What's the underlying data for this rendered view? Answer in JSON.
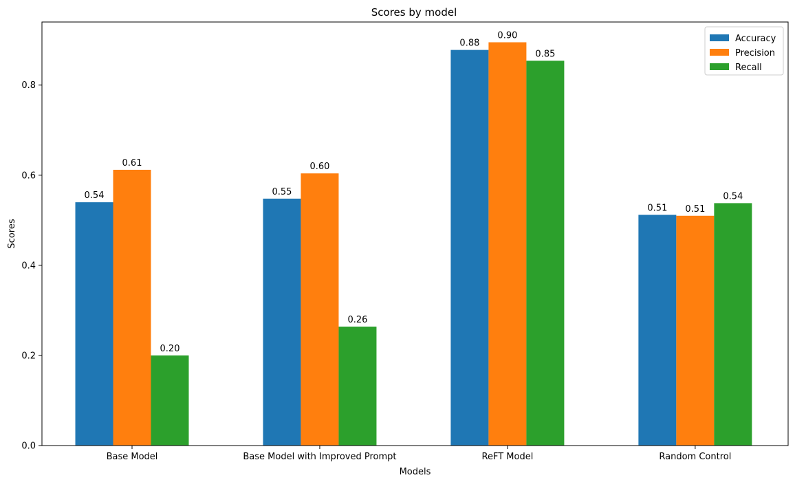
{
  "chart_data": {
    "type": "bar",
    "title": "Scores by model",
    "xlabel": "Models",
    "ylabel": "Scores",
    "categories": [
      "Base Model",
      "Base Model with Improved Prompt",
      "ReFT Model",
      "Random Control"
    ],
    "series": [
      {
        "name": "Accuracy",
        "color": "#1f77b4",
        "values": [
          0.54,
          0.548,
          0.878,
          0.512
        ],
        "labels": [
          "0.54",
          "0.55",
          "0.88",
          "0.51"
        ]
      },
      {
        "name": "Precision",
        "color": "#ff7f0e",
        "values": [
          0.612,
          0.604,
          0.895,
          0.51
        ],
        "labels": [
          "0.61",
          "0.60",
          "0.90",
          "0.51"
        ]
      },
      {
        "name": "Recall",
        "color": "#2ca02c",
        "values": [
          0.2,
          0.264,
          0.854,
          0.538
        ],
        "labels": [
          "0.20",
          "0.26",
          "0.85",
          "0.54"
        ]
      }
    ],
    "ylim": [
      0,
      0.94
    ],
    "yticks": [
      "0.0",
      "0.2",
      "0.4",
      "0.6",
      "0.8"
    ],
    "grid": false,
    "legend_position": "top-right"
  }
}
